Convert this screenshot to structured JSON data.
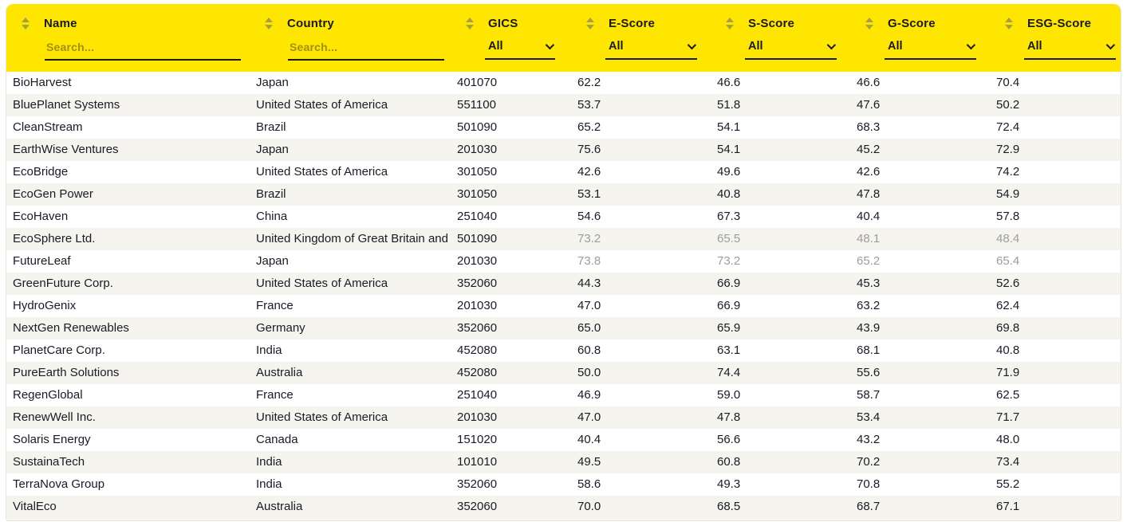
{
  "colors": {
    "header_background": "#ffe600",
    "text": "#1a1a24",
    "muted_text": "#9d9d9d",
    "row_stripe": "#f5f4ee",
    "sort_icon": "#a89f3d"
  },
  "header": {
    "columns": [
      {
        "key": "name",
        "label": "Name",
        "filter_type": "search",
        "placeholder": "Search..."
      },
      {
        "key": "country",
        "label": "Country",
        "filter_type": "search",
        "placeholder": "Search..."
      },
      {
        "key": "gics",
        "label": "GICS",
        "filter_type": "select",
        "value": "All"
      },
      {
        "key": "e_score",
        "label": "E-Score",
        "filter_type": "select",
        "value": "All"
      },
      {
        "key": "s_score",
        "label": "S-Score",
        "filter_type": "select",
        "value": "All"
      },
      {
        "key": "g_score",
        "label": "G-Score",
        "filter_type": "select",
        "value": "All"
      },
      {
        "key": "esg_score",
        "label": "ESG-Score",
        "filter_type": "select",
        "value": "All"
      }
    ]
  },
  "table": {
    "rows": [
      {
        "name": "BioHarvest",
        "country": "Japan",
        "gics": "401070",
        "e": "62.2",
        "s": "46.6",
        "g": "46.6",
        "esg": "70.4",
        "scores_muted": false
      },
      {
        "name": "BluePlanet Systems",
        "country": "United States of America",
        "gics": "551100",
        "e": "53.7",
        "s": "51.8",
        "g": "47.6",
        "esg": "50.2",
        "scores_muted": false
      },
      {
        "name": "CleanStream",
        "country": "Brazil",
        "gics": "501090",
        "e": "65.2",
        "s": "54.1",
        "g": "68.3",
        "esg": "72.4",
        "scores_muted": false
      },
      {
        "name": "EarthWise Ventures",
        "country": "Japan",
        "gics": "201030",
        "e": "75.6",
        "s": "54.1",
        "g": "45.2",
        "esg": "72.9",
        "scores_muted": false
      },
      {
        "name": "EcoBridge",
        "country": "United States of America",
        "gics": "301050",
        "e": "42.6",
        "s": "49.6",
        "g": "42.6",
        "esg": "74.2",
        "scores_muted": false
      },
      {
        "name": "EcoGen Power",
        "country": "Brazil",
        "gics": "301050",
        "e": "53.1",
        "s": "40.8",
        "g": "47.8",
        "esg": "54.9",
        "scores_muted": false
      },
      {
        "name": "EcoHaven",
        "country": "China",
        "gics": "251040",
        "e": "54.6",
        "s": "67.3",
        "g": "40.4",
        "esg": "57.8",
        "scores_muted": false
      },
      {
        "name": "EcoSphere Ltd.",
        "country": "United Kingdom of Great Britain and Northern Ireland",
        "gics": "501090",
        "e": "73.2",
        "s": "65.5",
        "g": "48.1",
        "esg": "48.4",
        "scores_muted": true
      },
      {
        "name": "FutureLeaf",
        "country": "Japan",
        "gics": "201030",
        "e": "73.8",
        "s": "73.2",
        "g": "65.2",
        "esg": "65.4",
        "scores_muted": true
      },
      {
        "name": "GreenFuture Corp.",
        "country": "United States of America",
        "gics": "352060",
        "e": "44.3",
        "s": "66.9",
        "g": "45.3",
        "esg": "52.6",
        "scores_muted": false
      },
      {
        "name": "HydroGenix",
        "country": "France",
        "gics": "201030",
        "e": "47.0",
        "s": "66.9",
        "g": "63.2",
        "esg": "62.4",
        "scores_muted": false
      },
      {
        "name": "NextGen Renewables",
        "country": "Germany",
        "gics": "352060",
        "e": "65.0",
        "s": "65.9",
        "g": "43.9",
        "esg": "69.8",
        "scores_muted": false
      },
      {
        "name": "PlanetCare Corp.",
        "country": "India",
        "gics": "452080",
        "e": "60.8",
        "s": "63.1",
        "g": "68.1",
        "esg": "40.8",
        "scores_muted": false
      },
      {
        "name": "PureEarth Solutions",
        "country": "Australia",
        "gics": "452080",
        "e": "50.0",
        "s": "74.4",
        "g": "55.6",
        "esg": "71.9",
        "scores_muted": false
      },
      {
        "name": "RegenGlobal",
        "country": "France",
        "gics": "251040",
        "e": "46.9",
        "s": "59.0",
        "g": "58.7",
        "esg": "62.5",
        "scores_muted": false
      },
      {
        "name": "RenewWell Inc.",
        "country": "United States of America",
        "gics": "201030",
        "e": "47.0",
        "s": "47.8",
        "g": "53.4",
        "esg": "71.7",
        "scores_muted": false
      },
      {
        "name": "Solaris Energy",
        "country": "Canada",
        "gics": "151020",
        "e": "40.4",
        "s": "56.6",
        "g": "43.2",
        "esg": "48.0",
        "scores_muted": false
      },
      {
        "name": "SustainaTech",
        "country": "India",
        "gics": "101010",
        "e": "49.5",
        "s": "60.8",
        "g": "70.2",
        "esg": "73.4",
        "scores_muted": false
      },
      {
        "name": "TerraNova Group",
        "country": "India",
        "gics": "352060",
        "e": "58.6",
        "s": "49.3",
        "g": "70.8",
        "esg": "55.2",
        "scores_muted": false
      },
      {
        "name": "VitalEco",
        "country": "Australia",
        "gics": "352060",
        "e": "70.0",
        "s": "68.5",
        "g": "68.7",
        "esg": "67.1",
        "scores_muted": false
      }
    ]
  }
}
